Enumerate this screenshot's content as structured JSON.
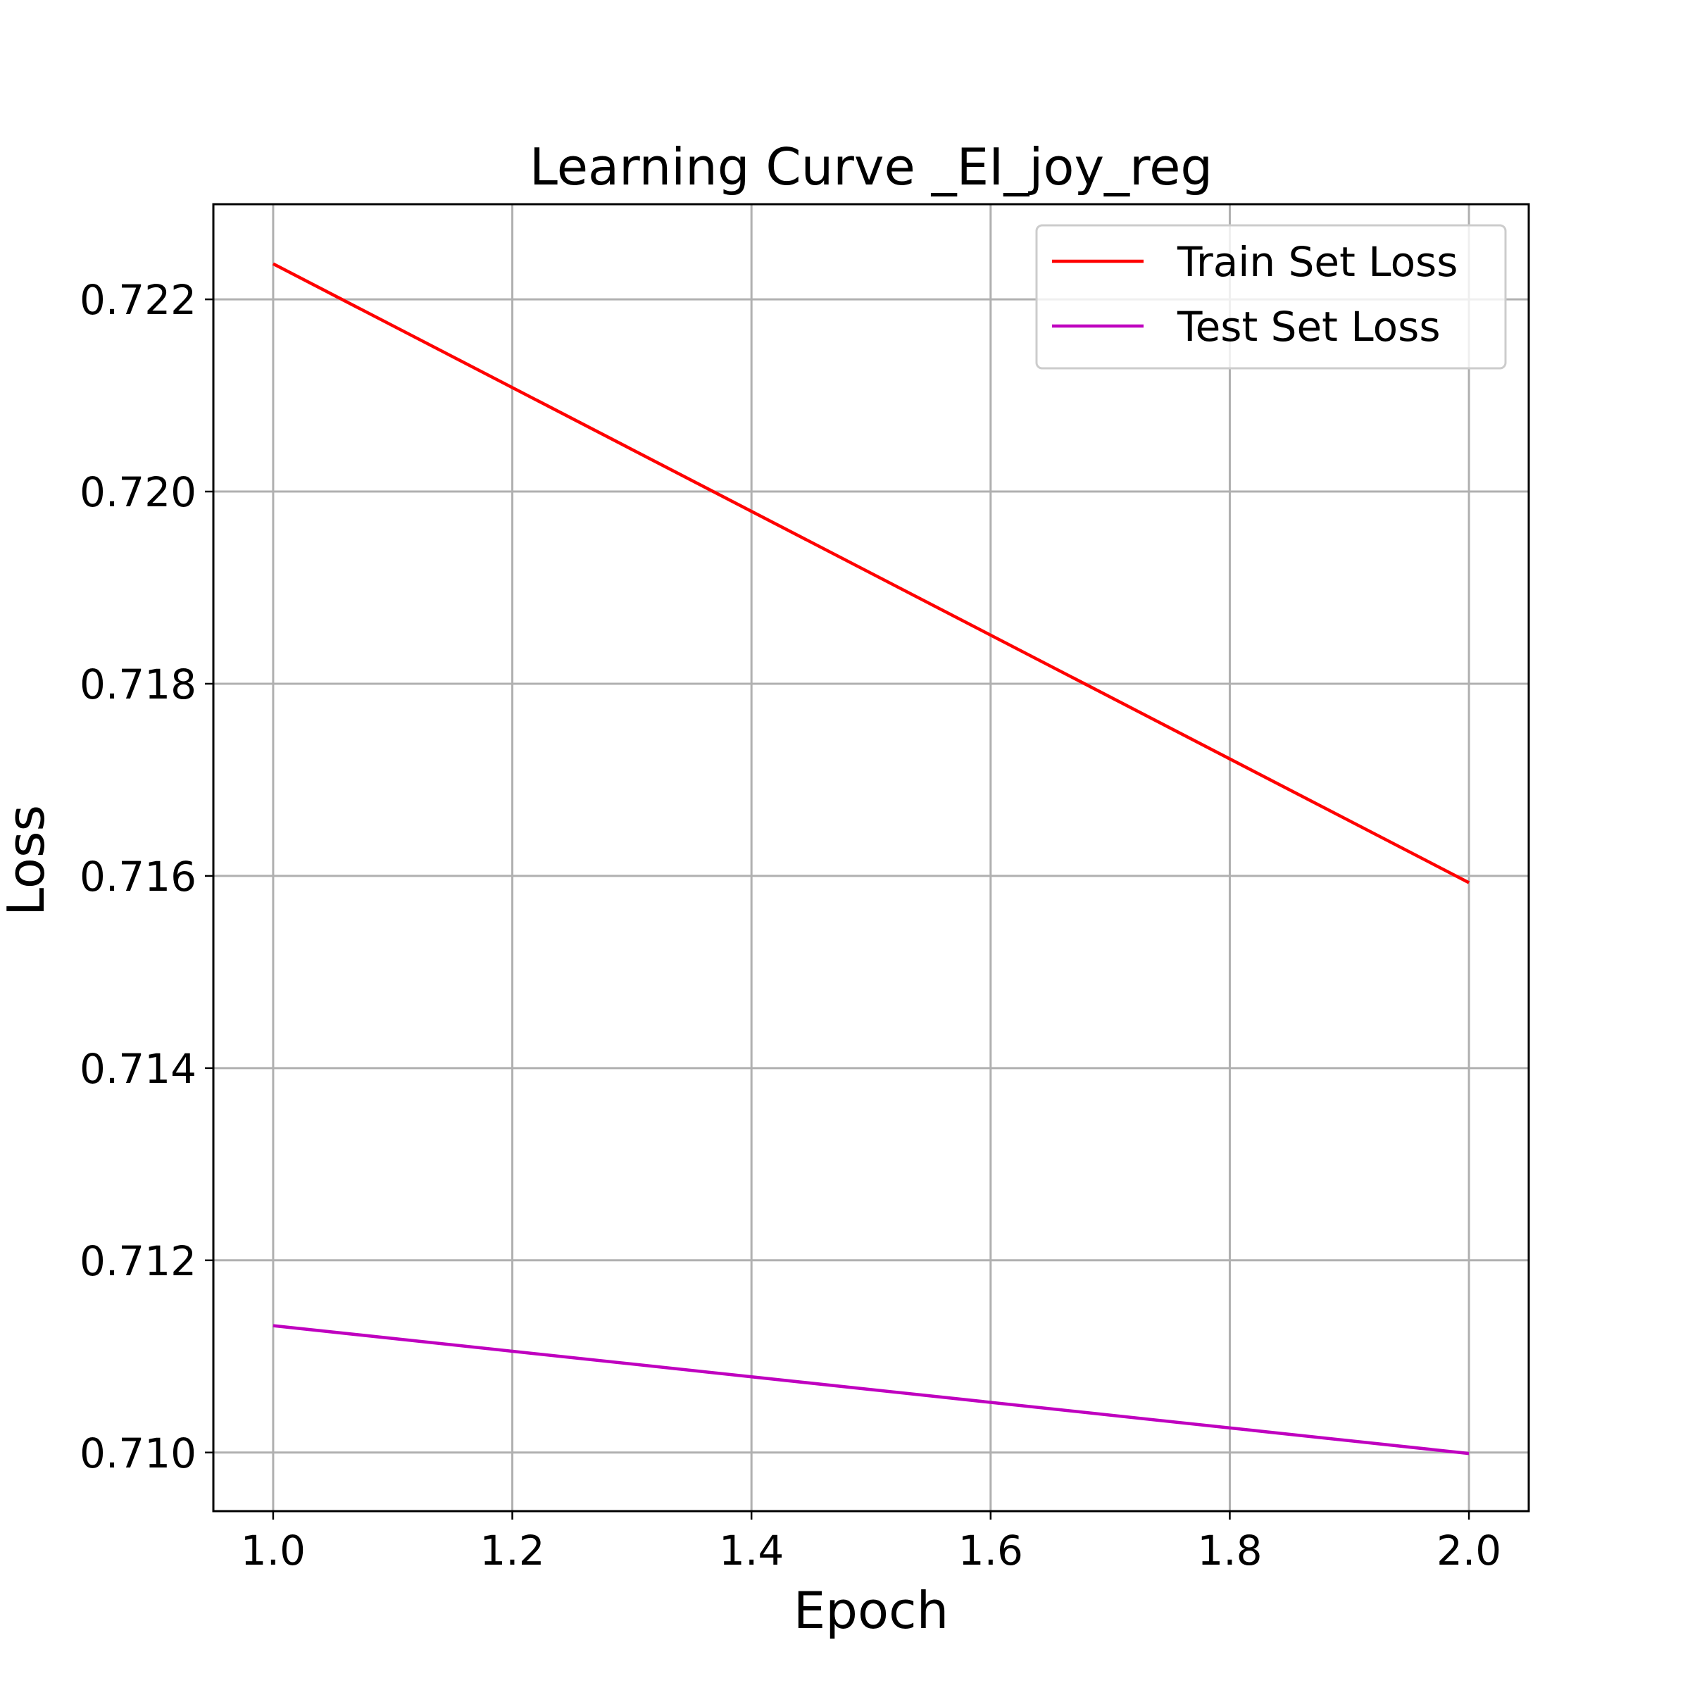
{
  "chart_data": {
    "type": "line",
    "title": "Learning Curve _EI_joy_reg",
    "xlabel": "Epoch",
    "ylabel": "Loss",
    "x": [
      1.0,
      2.0
    ],
    "series": [
      {
        "name": "Train Set Loss",
        "color": "#ff0000",
        "values": [
          0.72237,
          0.71593
        ]
      },
      {
        "name": "Test Set Loss",
        "color": "#bf00bf",
        "values": [
          0.71132,
          0.70999
        ]
      }
    ],
    "xlim": [
      0.95,
      2.05
    ],
    "ylim": [
      0.70939,
      0.72299
    ],
    "xticks": [
      1.0,
      1.2,
      1.4,
      1.6,
      1.8,
      2.0
    ],
    "xtick_labels": [
      "1.0",
      "1.2",
      "1.4",
      "1.6",
      "1.8",
      "2.0"
    ],
    "yticks": [
      0.71,
      0.712,
      0.714,
      0.716,
      0.718,
      0.72,
      0.722
    ],
    "ytick_labels": [
      "0.710",
      "0.712",
      "0.714",
      "0.716",
      "0.718",
      "0.720",
      "0.722"
    ],
    "grid": true,
    "legend_position": "top-right"
  }
}
